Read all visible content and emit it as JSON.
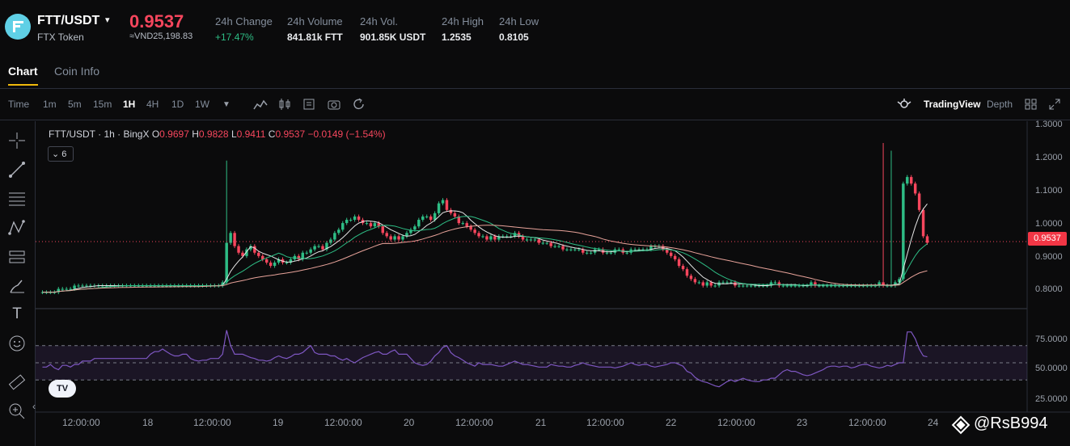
{
  "header": {
    "pair": "FTT/USDT",
    "pair_name": "FTX Token",
    "last_price": "0.9537",
    "price_vnd": "≈VND25,198.83",
    "stats": [
      {
        "label": "24h Change",
        "value": "+17.47%",
        "positive": true
      },
      {
        "label": "24h Volume",
        "value": "841.81k FTT"
      },
      {
        "label": "24h Vol.",
        "value": "901.85K USDT"
      },
      {
        "label": "24h High",
        "value": "1.2535"
      },
      {
        "label": "24h Low",
        "value": "0.8105"
      }
    ]
  },
  "tabs": [
    "Chart",
    "Coin Info"
  ],
  "toolbar": {
    "timeframes": [
      "Time",
      "1m",
      "5m",
      "15m",
      "1H",
      "4H",
      "1D",
      "1W"
    ],
    "active_timeframe": "1H",
    "tradingview_label": "TradingView",
    "depth_label": "Depth"
  },
  "legend": {
    "symbol": "FTT/USDT · 1h · BingX",
    "o_label": "O",
    "o": "0.9697",
    "h_label": "H",
    "h": "0.9828",
    "l_label": "L",
    "l": "0.9411",
    "c_label": "C",
    "c": "0.9537",
    "change": "−0.0149 (−1.54%)",
    "indicators_count": "6"
  },
  "price_axis": [
    "1.3000",
    "1.2000",
    "1.1000",
    "1.0000",
    "0.9000",
    "0.8000"
  ],
  "rsi_axis": [
    "75.0000",
    "50.0000",
    "25.0000"
  ],
  "price_tag": "0.9537",
  "time_axis": [
    "12:00:00",
    "18",
    "12:00:00",
    "19",
    "12:00:00",
    "20",
    "12:00:00",
    "21",
    "12:00:00",
    "22",
    "12:00:00",
    "23",
    "12:00:00",
    "24"
  ],
  "watermark": "@RsB994",
  "colors": {
    "up": "#2ebd85",
    "down": "#f6465d",
    "accent": "#f0b90b",
    "ma_fast": "#e6e6e6",
    "ma_mid": "#2ebd85",
    "ma_slow": "#e8a39a",
    "rsi": "#7e57c2"
  },
  "chart_data": {
    "type": "candlestick",
    "x_unit": "hour index (1H candles)",
    "ohlc_close_approx": [
      0.8,
      0.8,
      0.8,
      0.8,
      0.81,
      0.81,
      0.81,
      0.81,
      0.82,
      0.82,
      0.82,
      0.82,
      0.82,
      0.82,
      0.82,
      0.82,
      0.82,
      0.82,
      0.82,
      0.82,
      0.82,
      0.82,
      0.82,
      0.82,
      0.82,
      0.82,
      0.82,
      0.82,
      0.82,
      0.82,
      0.82,
      0.82,
      0.82,
      0.82,
      0.82,
      0.82,
      0.82,
      0.82,
      0.82,
      0.82,
      0.82,
      0.82,
      0.82,
      0.82,
      0.82,
      0.83,
      0.95,
      0.98,
      0.94,
      0.92,
      0.91,
      0.93,
      0.94,
      0.92,
      0.91,
      0.9,
      0.89,
      0.88,
      0.89,
      0.9,
      0.89,
      0.89,
      0.9,
      0.91,
      0.9,
      0.92,
      0.92,
      0.93,
      0.94,
      0.94,
      0.93,
      0.95,
      0.96,
      0.98,
      0.99,
      1.01,
      1.02,
      1.02,
      1.03,
      1.02,
      1.01,
      1.01,
      1.0,
      1.01,
      1.0,
      0.98,
      0.97,
      0.96,
      0.97,
      0.96,
      0.97,
      0.98,
      0.99,
      1.0,
      1.02,
      1.03,
      1.03,
      1.02,
      1.04,
      1.07,
      1.08,
      1.05,
      1.04,
      1.03,
      1.01,
      1.01,
      1.0,
      0.99,
      0.98,
      0.97,
      0.97,
      0.96,
      0.97,
      0.96,
      0.97,
      0.97,
      0.97,
      0.97,
      0.98,
      0.97,
      0.96,
      0.96,
      0.96,
      0.96,
      0.95,
      0.95,
      0.95,
      0.94,
      0.94,
      0.94,
      0.93,
      0.93,
      0.93,
      0.93,
      0.93,
      0.92,
      0.92,
      0.92,
      0.93,
      0.93,
      0.92,
      0.92,
      0.92,
      0.93,
      0.93,
      0.92,
      0.92,
      0.93,
      0.93,
      0.93,
      0.93,
      0.93,
      0.94,
      0.94,
      0.94,
      0.93,
      0.92,
      0.91,
      0.9,
      0.88,
      0.87,
      0.85,
      0.84,
      0.83,
      0.83,
      0.82,
      0.83,
      0.82,
      0.82,
      0.83,
      0.83,
      0.83,
      0.83,
      0.82,
      0.82,
      0.82,
      0.82,
      0.82,
      0.82,
      0.82,
      0.82,
      0.82,
      0.83,
      0.83,
      0.82,
      0.82,
      0.82,
      0.82,
      0.82,
      0.82,
      0.82,
      0.82,
      0.83,
      0.82,
      0.82,
      0.82,
      0.82,
      0.82,
      0.82,
      0.82,
      0.82,
      0.82,
      0.82,
      0.82,
      0.82,
      0.82,
      0.82,
      0.82,
      0.82,
      0.83,
      0.82,
      0.82,
      0.82,
      0.83,
      0.84,
      1.13,
      1.15,
      1.13,
      1.1,
      1.05,
      0.97,
      0.95
    ],
    "moving_averages": [
      "fast (white)",
      "mid (green)",
      "slow (salmon)"
    ],
    "rsi_approx": [
      45,
      45,
      48,
      44,
      42,
      47,
      47,
      45,
      48,
      48,
      52,
      52,
      52,
      55,
      55,
      55,
      55,
      55,
      55,
      55,
      55,
      55,
      55,
      55,
      55,
      55,
      55,
      60,
      63,
      63,
      66,
      63,
      60,
      58,
      58,
      60,
      60,
      55,
      53,
      52,
      53,
      53,
      55,
      55,
      55,
      60,
      88,
      70,
      60,
      60,
      60,
      58,
      56,
      55,
      53,
      53,
      52,
      53,
      56,
      58,
      56,
      55,
      57,
      60,
      60,
      62,
      66,
      70,
      62,
      60,
      60,
      60,
      58,
      58,
      55,
      53,
      55,
      52,
      50,
      53,
      56,
      58,
      60,
      62,
      63,
      60,
      60,
      63,
      65,
      60,
      60,
      60,
      55,
      50,
      48,
      47,
      48,
      52,
      58,
      62,
      68,
      70,
      62,
      58,
      56,
      53,
      50,
      48,
      46,
      50,
      48,
      48,
      48,
      47,
      46,
      46,
      48,
      50,
      52,
      50,
      48,
      48,
      47,
      46,
      45,
      45,
      45,
      48,
      47,
      46,
      46,
      45,
      45,
      47,
      48,
      50,
      48,
      47,
      46,
      45,
      45,
      45,
      45,
      44,
      45,
      46,
      48,
      50,
      48,
      47,
      48,
      48,
      46,
      45,
      46,
      47,
      48,
      50,
      50,
      48,
      46,
      40,
      38,
      33,
      30,
      28,
      27,
      25,
      23,
      22,
      25,
      28,
      30,
      28,
      30,
      32,
      30,
      29,
      28,
      28,
      30,
      30,
      32,
      32,
      36,
      40,
      42,
      40,
      40,
      38,
      36,
      35,
      36,
      38,
      40,
      42,
      45,
      46,
      46,
      45,
      46,
      46,
      44,
      45,
      47,
      48,
      48,
      46,
      45,
      44,
      45,
      47,
      46,
      48,
      50,
      50,
      86,
      86,
      78,
      66,
      58,
      57
    ]
  }
}
